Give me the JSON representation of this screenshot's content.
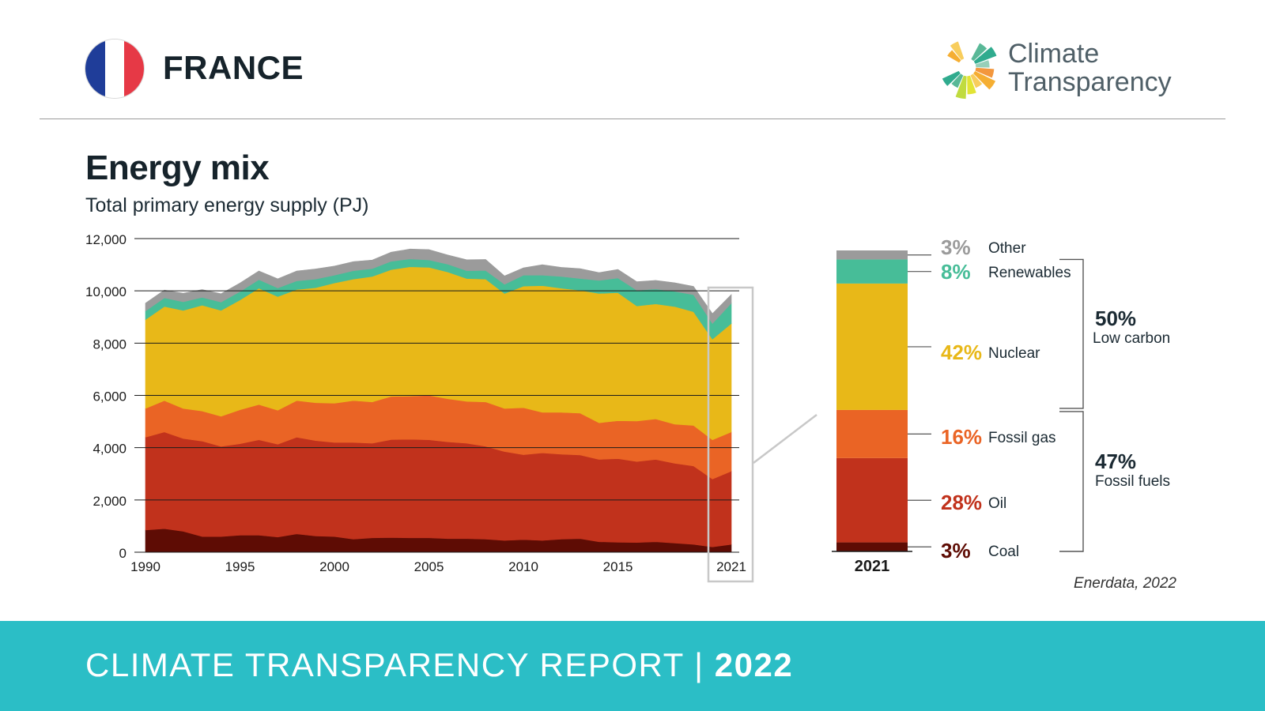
{
  "header": {
    "country": "FRANCE",
    "flag_colors": [
      "#1f3d99",
      "#ffffff",
      "#e63946"
    ],
    "logo_text_line1": "Climate",
    "logo_text_line2": "Transparency",
    "logo_colors": [
      "#f4a51c",
      "#f7c84a",
      "#dfe11f",
      "#b9d72a",
      "#47b08c",
      "#1aa282",
      "#8ccab1",
      "#f28c28"
    ]
  },
  "title": "Energy mix",
  "subtitle": "Total primary energy supply (PJ)",
  "source": "Enerdata, 2022",
  "footer": {
    "text": "CLIMATE TRANSPARENCY REPORT | ",
    "year": "2022",
    "color": "#2bbec6"
  },
  "chart_data": [
    {
      "type": "area",
      "stacked": true,
      "x": [
        1990,
        1991,
        1992,
        1993,
        1994,
        1995,
        1996,
        1997,
        1998,
        1999,
        2000,
        2001,
        2002,
        2003,
        2004,
        2005,
        2006,
        2007,
        2008,
        2009,
        2010,
        2011,
        2012,
        2013,
        2014,
        2015,
        2016,
        2017,
        2018,
        2019,
        2020,
        2021
      ],
      "xticks": [
        "1990",
        "1995",
        "2000",
        "2005",
        "2010",
        "2015",
        "2021"
      ],
      "yticks": [
        "0",
        "2,000",
        "4,000",
        "6,000",
        "8,000",
        "10,000",
        "12,000"
      ],
      "ylim": [
        0,
        12000
      ],
      "grid": true,
      "series": [
        {
          "key": "coal",
          "color": "#5e0c04",
          "values": [
            850,
            900,
            800,
            600,
            600,
            650,
            650,
            580,
            700,
            620,
            600,
            500,
            550,
            560,
            550,
            550,
            520,
            520,
            500,
            450,
            480,
            450,
            500,
            520,
            400,
            380,
            370,
            400,
            350,
            300,
            200,
            300
          ]
        },
        {
          "key": "oil",
          "color": "#c1321c",
          "values": [
            3550,
            3700,
            3550,
            3650,
            3450,
            3500,
            3650,
            3550,
            3700,
            3650,
            3600,
            3700,
            3620,
            3750,
            3770,
            3750,
            3700,
            3650,
            3550,
            3400,
            3250,
            3350,
            3250,
            3200,
            3150,
            3200,
            3100,
            3150,
            3050,
            3000,
            2600,
            2800
          ]
        },
        {
          "key": "gas",
          "color": "#ea6425",
          "values": [
            1100,
            1200,
            1150,
            1150,
            1150,
            1300,
            1350,
            1300,
            1400,
            1450,
            1500,
            1600,
            1580,
            1650,
            1650,
            1700,
            1650,
            1600,
            1700,
            1650,
            1800,
            1550,
            1600,
            1600,
            1400,
            1450,
            1550,
            1550,
            1500,
            1550,
            1500,
            1500
          ]
        },
        {
          "key": "nuclear",
          "color": "#e8b818",
          "values": [
            3400,
            3600,
            3750,
            4050,
            4050,
            4200,
            4450,
            4350,
            4250,
            4400,
            4600,
            4650,
            4800,
            4850,
            4950,
            4900,
            4850,
            4700,
            4700,
            4400,
            4650,
            4850,
            4750,
            4700,
            4950,
            4900,
            4400,
            4400,
            4500,
            4350,
            3850,
            4150
          ]
        },
        {
          "key": "renewables",
          "color": "#47bd98",
          "values": [
            330,
            330,
            330,
            300,
            320,
            320,
            330,
            330,
            330,
            330,
            300,
            320,
            300,
            320,
            300,
            280,
            300,
            300,
            330,
            350,
            420,
            400,
            450,
            450,
            500,
            560,
            600,
            570,
            580,
            650,
            600,
            780
          ]
        },
        {
          "key": "other",
          "color": "#9b9b9b",
          "values": [
            300,
            300,
            330,
            300,
            320,
            330,
            330,
            350,
            380,
            390,
            350,
            350,
            330,
            350,
            380,
            400,
            350,
            420,
            420,
            320,
            280,
            400,
            350,
            380,
            300,
            330,
            330,
            330,
            330,
            320,
            380,
            330
          ]
        }
      ]
    },
    {
      "type": "bar",
      "stacked": true,
      "category": "2021",
      "segments": [
        {
          "label": "Coal",
          "percent": "3%",
          "value": 3,
          "color": "#5e0c04"
        },
        {
          "label": "Oil",
          "percent": "28%",
          "value": 28,
          "color": "#c1321c"
        },
        {
          "label": "Fossil gas",
          "percent": "16%",
          "value": 16,
          "color": "#ea6425"
        },
        {
          "label": "Nuclear",
          "percent": "42%",
          "value": 42,
          "color": "#e8b818"
        },
        {
          "label": "Renewables",
          "percent": "8%",
          "value": 8,
          "color": "#47bd98"
        },
        {
          "label": "Other",
          "percent": "3%",
          "value": 3,
          "color": "#9b9b9b"
        }
      ],
      "groups": [
        {
          "percent": "50%",
          "label": "Low carbon"
        },
        {
          "percent": "47%",
          "label": "Fossil fuels"
        }
      ]
    }
  ]
}
